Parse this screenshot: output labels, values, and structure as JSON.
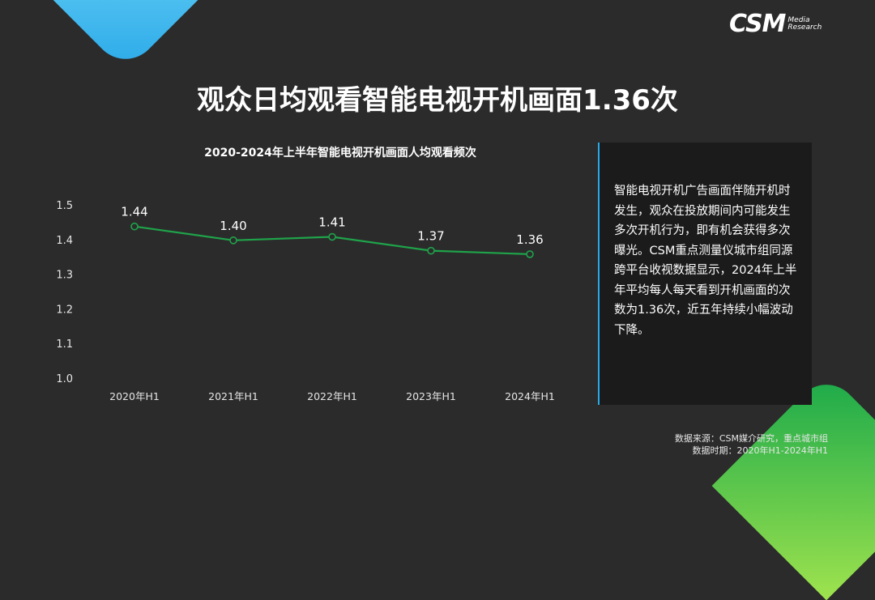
{
  "logo": {
    "main": "CSM",
    "sub_line1": "Media",
    "sub_line2": "Research"
  },
  "page_title": "观众日均观看智能电视开机画面1.36次",
  "description": "智能电视开机广告画面伴随开机时发生，观众在投放期间内可能发生多次开机行为，即有机会获得多次曝光。CSM重点测量仪城市组同源跨平台收视数据显示，2024年上半年平均每人每天看到开机画面的次数为1.36次，近五年持续小幅波动下降。",
  "source": {
    "line1": "数据来源：CSM媒介研究，重点城市组",
    "line2": "数据时期：2020年H1-2024年H1"
  },
  "colors": {
    "line": "#1fa34a",
    "panel_border": "#2aa9e8"
  },
  "chart_data": {
    "type": "line",
    "title": "2020-2024年上半年智能电视开机画面人均观看频次",
    "categories": [
      "2020年H1",
      "2021年H1",
      "2022年H1",
      "2023年H1",
      "2024年H1"
    ],
    "values": [
      1.44,
      1.4,
      1.41,
      1.37,
      1.36
    ],
    "data_labels": [
      "1.44",
      "1.40",
      "1.41",
      "1.37",
      "1.36"
    ],
    "y_ticks": [
      "1.0",
      "1.1",
      "1.2",
      "1.3",
      "1.4",
      "1.5"
    ],
    "ylim": [
      1.0,
      1.5
    ],
    "grid": false,
    "legend": "none"
  }
}
